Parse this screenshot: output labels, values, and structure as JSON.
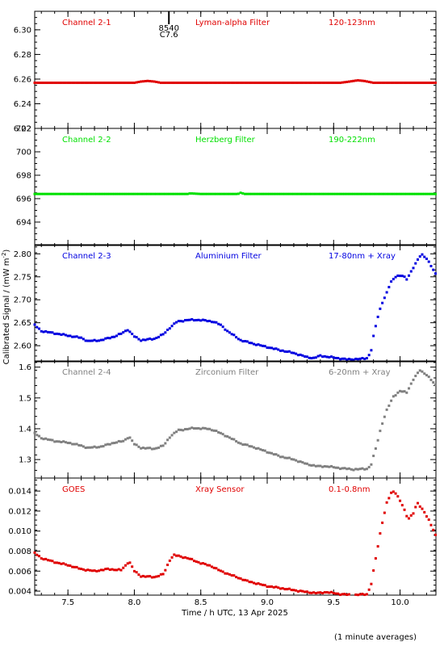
{
  "chart_data": {
    "type": "scatter",
    "xlabel": "Time / h UTC, 13 Apr 2025",
    "ylabel_html": [
      "Calibrated Signal / (mW m",
      "-2",
      ")"
    ],
    "xlim": [
      7.25,
      10.27
    ],
    "xticks": [
      7.5,
      8.0,
      8.5,
      9.0,
      9.5,
      10.0
    ],
    "footnote": "(1 minute averages)",
    "annotation": {
      "text1": "8540",
      "text2": "C7.6",
      "x": 8.26
    },
    "panels": [
      {
        "channel": "Channel 2-1",
        "filter": "Lyman-alpha Filter",
        "band": "120-123nm",
        "color": "#e00000",
        "ylim": [
          6.22,
          6.315
        ],
        "yticks": [
          6.22,
          6.24,
          6.26,
          6.28,
          6.3
        ],
        "series": [
          [
            7.25,
            6.257
          ],
          [
            7.5,
            6.257
          ],
          [
            7.8,
            6.257
          ],
          [
            8.0,
            6.257
          ],
          [
            8.05,
            6.258
          ],
          [
            8.1,
            6.2585
          ],
          [
            8.15,
            6.258
          ],
          [
            8.2,
            6.257
          ],
          [
            8.5,
            6.257
          ],
          [
            8.8,
            6.257
          ],
          [
            9.2,
            6.257
          ],
          [
            9.55,
            6.257
          ],
          [
            9.62,
            6.258
          ],
          [
            9.68,
            6.259
          ],
          [
            9.73,
            6.2585
          ],
          [
            9.8,
            6.257
          ],
          [
            10.0,
            6.257
          ],
          [
            10.27,
            6.257
          ]
        ]
      },
      {
        "channel": "Channel 2-2",
        "filter": "Herzberg Filter",
        "band": "190-222nm",
        "color": "#00e000",
        "ylim": [
          692.0,
          702.0
        ],
        "yticks": [
          694,
          696,
          698,
          700,
          702
        ],
        "series": [
          [
            7.25,
            696.4
          ],
          [
            7.5,
            696.4
          ],
          [
            8.0,
            696.4
          ],
          [
            8.4,
            696.4
          ],
          [
            8.42,
            696.45
          ],
          [
            8.5,
            696.4
          ],
          [
            8.78,
            696.4
          ],
          [
            8.8,
            696.5
          ],
          [
            8.83,
            696.4
          ],
          [
            9.2,
            696.4
          ],
          [
            9.6,
            696.4
          ],
          [
            10.0,
            696.4
          ],
          [
            10.27,
            696.4
          ]
        ]
      },
      {
        "channel": "Channel 2-3",
        "filter": "Aluminium Filter",
        "band": "17-80nm + Xray",
        "color": "#0000e0",
        "ylim": [
          2.565,
          2.82
        ],
        "yticks": [
          2.6,
          2.65,
          2.7,
          2.75,
          2.8
        ],
        "series": [
          [
            7.25,
            2.645
          ],
          [
            7.3,
            2.632
          ],
          [
            7.4,
            2.627
          ],
          [
            7.5,
            2.622
          ],
          [
            7.6,
            2.617
          ],
          [
            7.65,
            2.61
          ],
          [
            7.75,
            2.612
          ],
          [
            7.85,
            2.62
          ],
          [
            7.9,
            2.626
          ],
          [
            7.95,
            2.635
          ],
          [
            8.0,
            2.62
          ],
          [
            8.05,
            2.612
          ],
          [
            8.15,
            2.615
          ],
          [
            8.22,
            2.625
          ],
          [
            8.27,
            2.64
          ],
          [
            8.32,
            2.652
          ],
          [
            8.4,
            2.656
          ],
          [
            8.5,
            2.656
          ],
          [
            8.6,
            2.652
          ],
          [
            8.65,
            2.645
          ],
          [
            8.7,
            2.632
          ],
          [
            8.8,
            2.612
          ],
          [
            8.9,
            2.604
          ],
          [
            9.0,
            2.597
          ],
          [
            9.1,
            2.59
          ],
          [
            9.2,
            2.584
          ],
          [
            9.3,
            2.575
          ],
          [
            9.35,
            2.573
          ],
          [
            9.4,
            2.578
          ],
          [
            9.5,
            2.574
          ],
          [
            9.6,
            2.57
          ],
          [
            9.7,
            2.571
          ],
          [
            9.75,
            2.573
          ],
          [
            9.78,
            2.585
          ],
          [
            9.8,
            2.62
          ],
          [
            9.83,
            2.66
          ],
          [
            9.86,
            2.69
          ],
          [
            9.9,
            2.715
          ],
          [
            9.93,
            2.738
          ],
          [
            9.97,
            2.752
          ],
          [
            10.02,
            2.752
          ],
          [
            10.05,
            2.745
          ],
          [
            10.08,
            2.76
          ],
          [
            10.12,
            2.78
          ],
          [
            10.16,
            2.8
          ],
          [
            10.2,
            2.79
          ],
          [
            10.24,
            2.77
          ],
          [
            10.27,
            2.755
          ]
        ]
      },
      {
        "channel": "Channel 2-4",
        "filter": "Zirconium Filter",
        "band": "6-20nm + Xray",
        "color": "#808080",
        "ylim": [
          1.24,
          1.62
        ],
        "yticks": [
          1.3,
          1.4,
          1.5,
          1.6
        ],
        "series": [
          [
            7.25,
            1.385
          ],
          [
            7.3,
            1.37
          ],
          [
            7.4,
            1.36
          ],
          [
            7.5,
            1.355
          ],
          [
            7.6,
            1.345
          ],
          [
            7.65,
            1.338
          ],
          [
            7.75,
            1.342
          ],
          [
            7.85,
            1.355
          ],
          [
            7.92,
            1.36
          ],
          [
            7.96,
            1.375
          ],
          [
            8.0,
            1.35
          ],
          [
            8.05,
            1.338
          ],
          [
            8.15,
            1.335
          ],
          [
            8.22,
            1.345
          ],
          [
            8.27,
            1.375
          ],
          [
            8.33,
            1.395
          ],
          [
            8.45,
            1.402
          ],
          [
            8.55,
            1.4
          ],
          [
            8.6,
            1.395
          ],
          [
            8.7,
            1.375
          ],
          [
            8.8,
            1.352
          ],
          [
            8.9,
            1.34
          ],
          [
            9.0,
            1.325
          ],
          [
            9.1,
            1.31
          ],
          [
            9.2,
            1.3
          ],
          [
            9.3,
            1.285
          ],
          [
            9.38,
            1.278
          ],
          [
            9.45,
            1.278
          ],
          [
            9.55,
            1.272
          ],
          [
            9.65,
            1.268
          ],
          [
            9.75,
            1.27
          ],
          [
            9.78,
            1.28
          ],
          [
            9.82,
            1.34
          ],
          [
            9.86,
            1.41
          ],
          [
            9.9,
            1.46
          ],
          [
            9.95,
            1.505
          ],
          [
            10.0,
            1.522
          ],
          [
            10.05,
            1.518
          ],
          [
            10.1,
            1.56
          ],
          [
            10.15,
            1.59
          ],
          [
            10.2,
            1.575
          ],
          [
            10.27,
            1.54
          ]
        ]
      },
      {
        "channel": "GOES",
        "filter": "Xray Sensor",
        "band": "0.1-0.8nm",
        "color": "#e00000",
        "ylim": [
          0.0036,
          0.0153
        ],
        "yticks": [
          0.004,
          0.006,
          0.008,
          0.01,
          0.012,
          0.014
        ],
        "series": [
          [
            7.25,
            0.0078
          ],
          [
            7.3,
            0.0073
          ],
          [
            7.4,
            0.0069
          ],
          [
            7.5,
            0.0066
          ],
          [
            7.6,
            0.0062
          ],
          [
            7.7,
            0.006
          ],
          [
            7.8,
            0.0062
          ],
          [
            7.9,
            0.0061
          ],
          [
            7.93,
            0.0065
          ],
          [
            7.96,
            0.007
          ],
          [
            8.0,
            0.006
          ],
          [
            8.05,
            0.0055
          ],
          [
            8.15,
            0.0054
          ],
          [
            8.22,
            0.0057
          ],
          [
            8.27,
            0.0072
          ],
          [
            8.3,
            0.0076
          ],
          [
            8.4,
            0.0073
          ],
          [
            8.5,
            0.0068
          ],
          [
            8.58,
            0.0065
          ],
          [
            8.65,
            0.006
          ],
          [
            8.75,
            0.0055
          ],
          [
            8.85,
            0.005
          ],
          [
            9.0,
            0.0045
          ],
          [
            9.1,
            0.0043
          ],
          [
            9.2,
            0.0041
          ],
          [
            9.3,
            0.0039
          ],
          [
            9.38,
            0.0038
          ],
          [
            9.45,
            0.0039
          ],
          [
            9.55,
            0.0037
          ],
          [
            9.65,
            0.0036
          ],
          [
            9.75,
            0.0037
          ],
          [
            9.78,
            0.0045
          ],
          [
            9.82,
            0.0075
          ],
          [
            9.86,
            0.0105
          ],
          [
            9.9,
            0.0128
          ],
          [
            9.94,
            0.014
          ],
          [
            9.97,
            0.0138
          ],
          [
            10.02,
            0.0125
          ],
          [
            10.06,
            0.0112
          ],
          [
            10.1,
            0.0118
          ],
          [
            10.13,
            0.0128
          ],
          [
            10.18,
            0.012
          ],
          [
            10.22,
            0.011
          ],
          [
            10.27,
            0.0095
          ]
        ]
      }
    ]
  }
}
